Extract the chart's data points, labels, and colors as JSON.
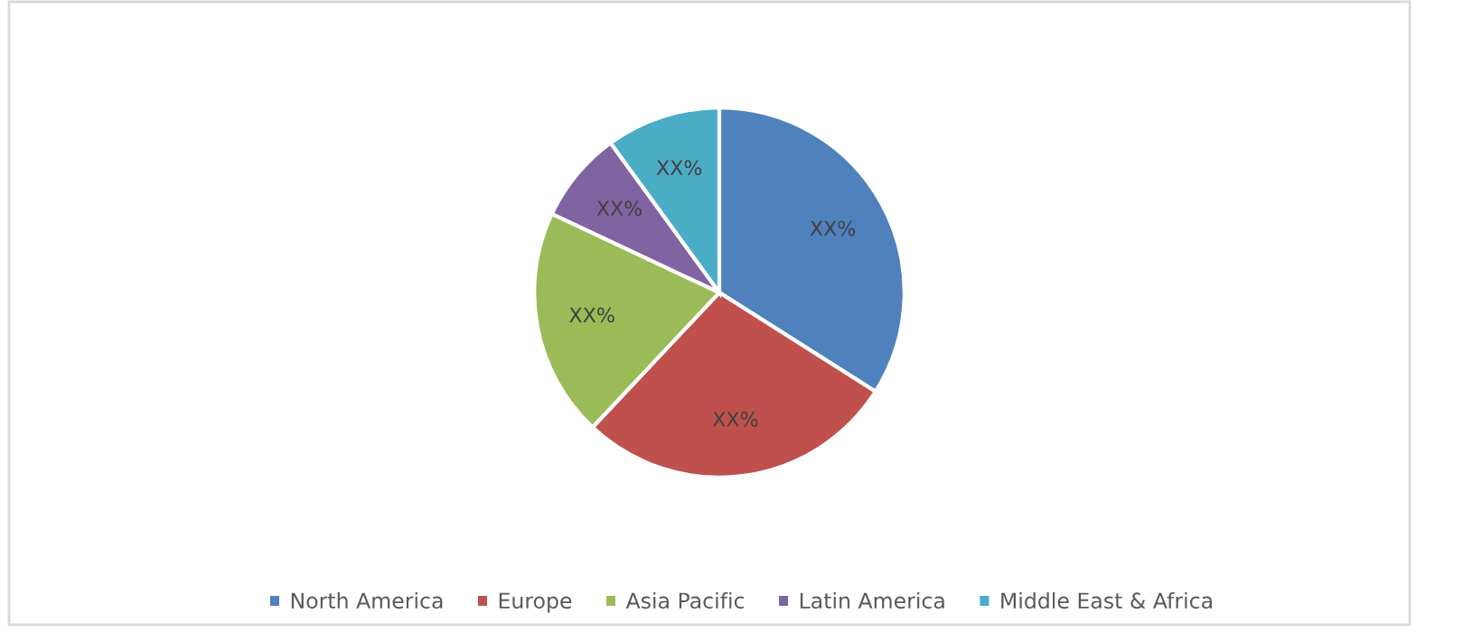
{
  "chart_data": {
    "type": "pie",
    "categories": [
      "North America",
      "Europe",
      "Asia Pacific",
      "Latin America",
      "Middle East & Africa"
    ],
    "values": [
      34,
      28,
      20,
      8,
      10
    ],
    "colors": [
      "#4f81bd",
      "#c0504d",
      "#9bbb59",
      "#8064a2",
      "#4bacc6"
    ],
    "value_labels": [
      "XX%",
      "XX%",
      "XX%",
      "XX%",
      "XX%"
    ],
    "legend": "bottom"
  }
}
